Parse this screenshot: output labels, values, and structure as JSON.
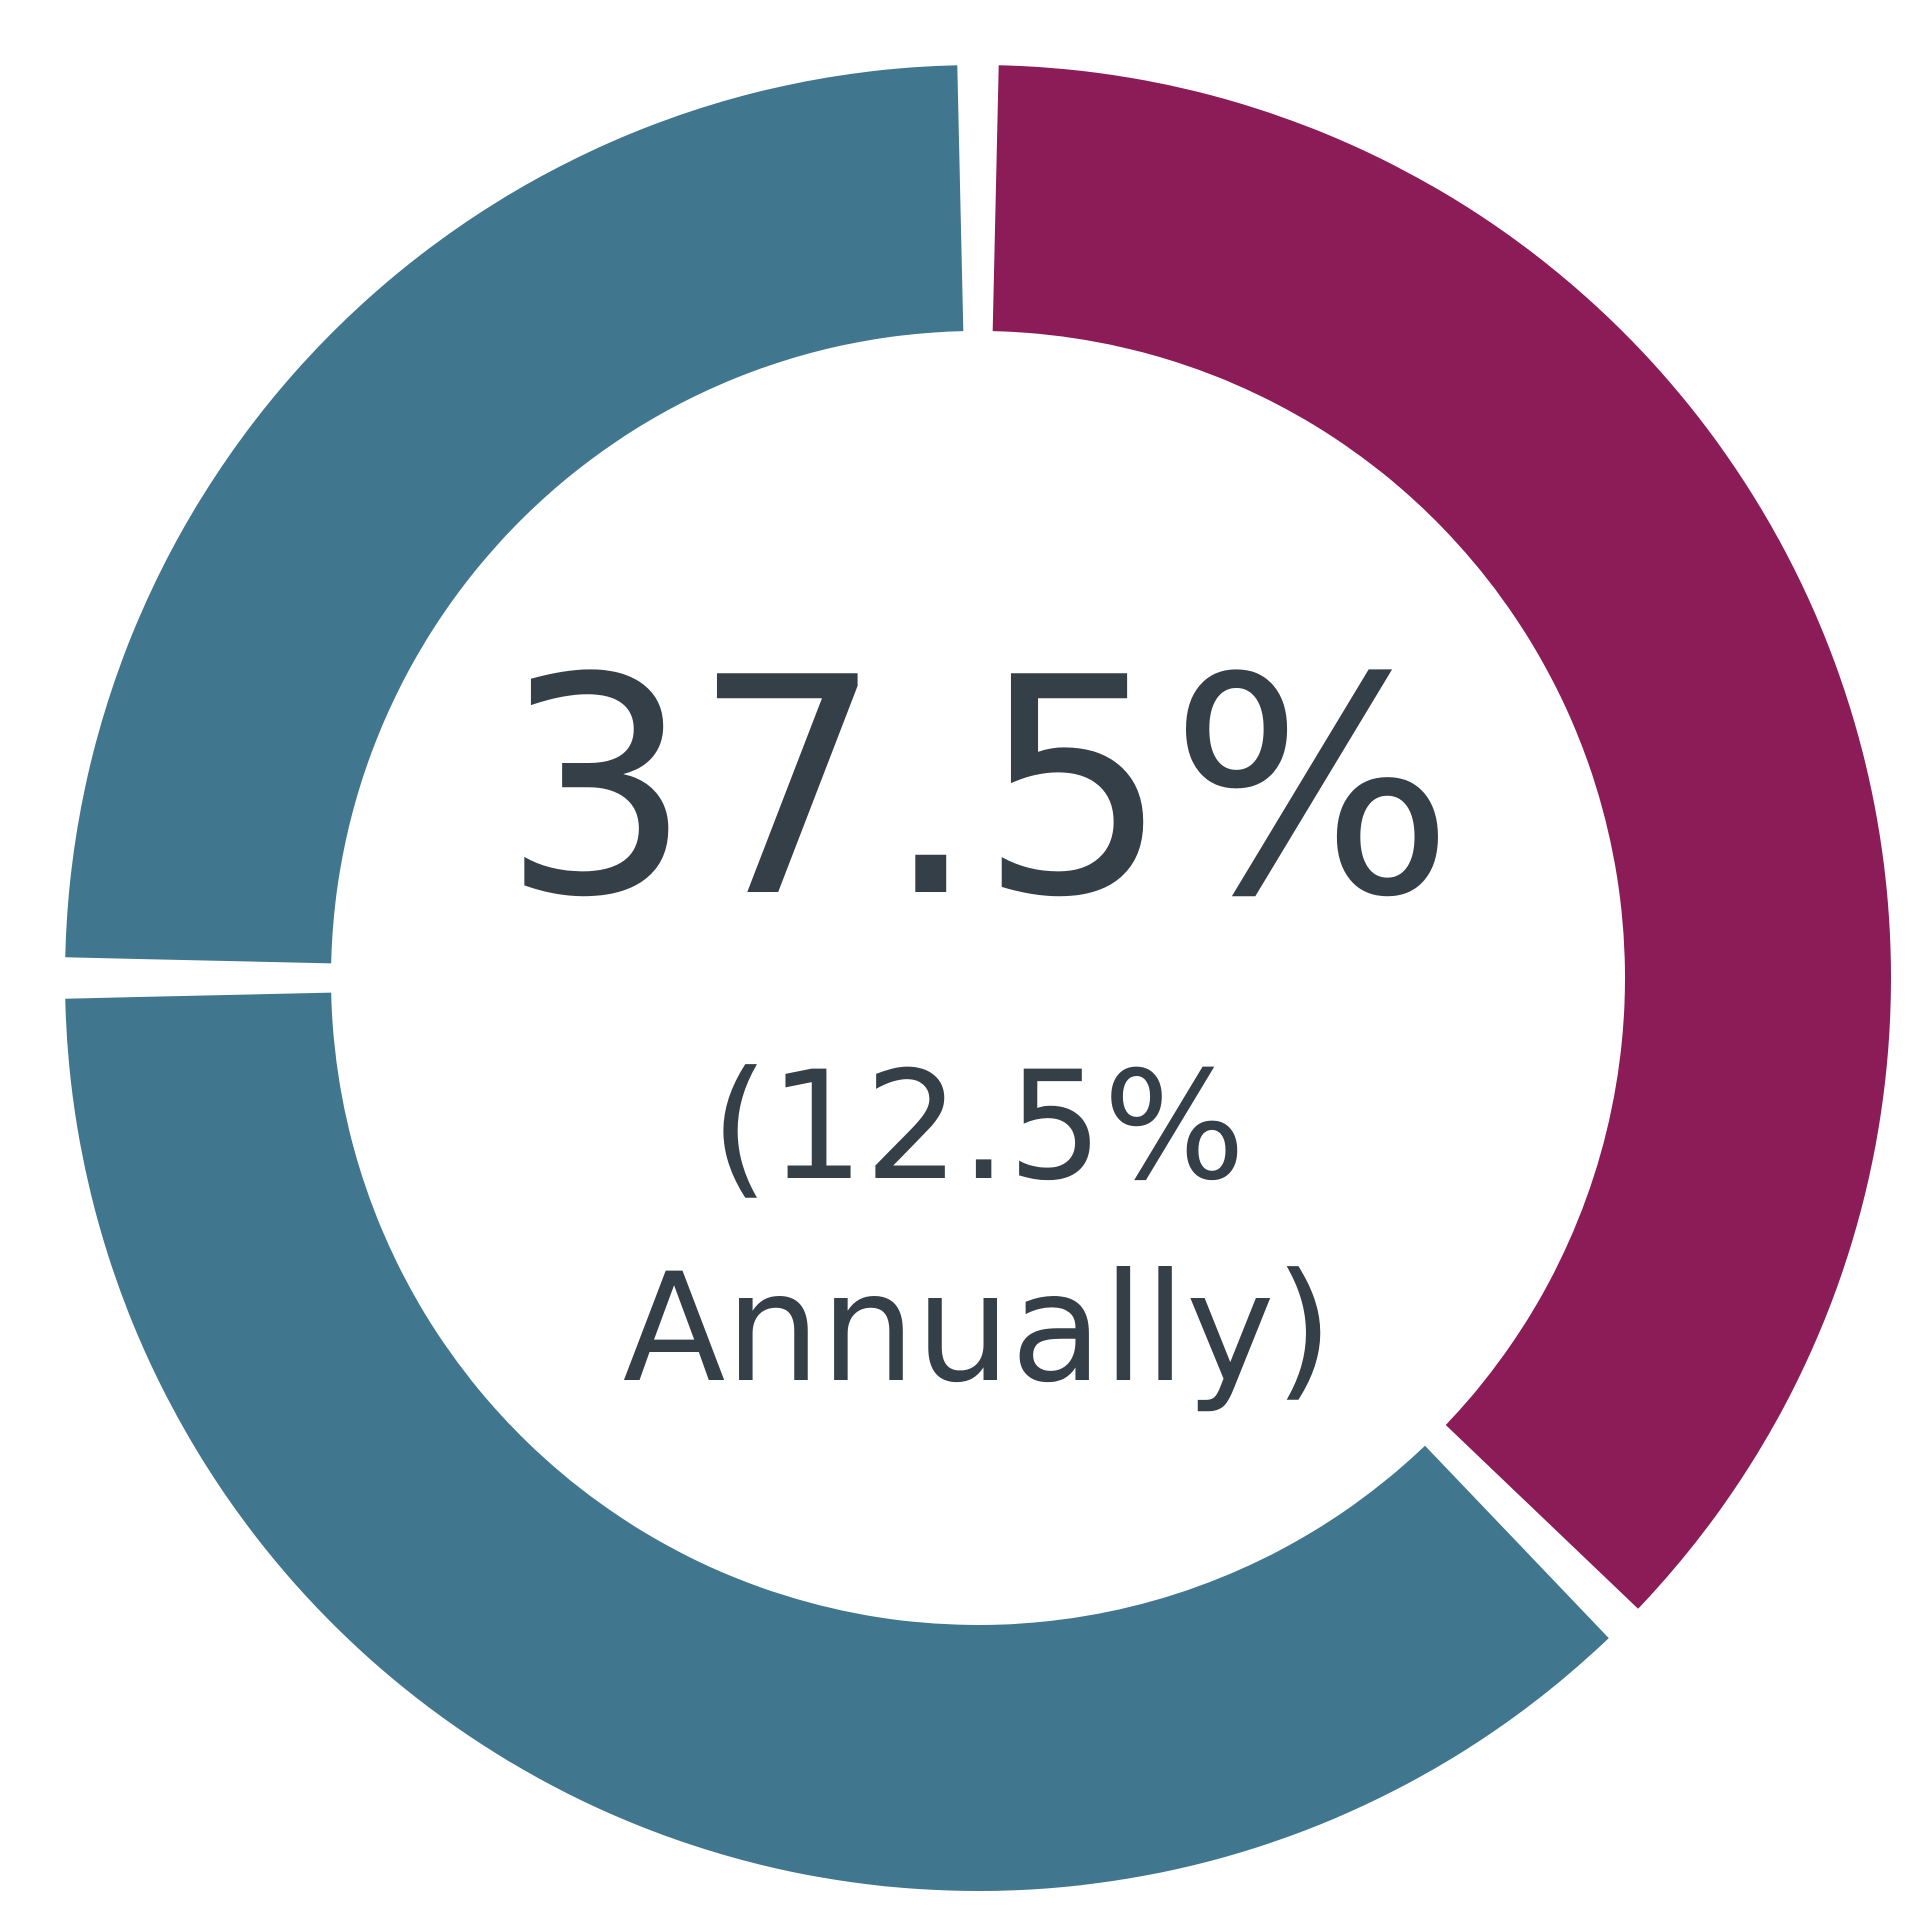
{
  "chart_data": {
    "type": "pie",
    "style": "donut",
    "segments": [
      {
        "value": 25.0,
        "color": "#41768F"
      },
      {
        "value": 37.5,
        "color": "#41768F"
      },
      {
        "value": 37.5,
        "color": "#8C1C57"
      }
    ],
    "center_label": "37.5%",
    "center_sublabel_line1": "(12.5%",
    "center_sublabel_line2": "Annually)",
    "text_color": "#343F48",
    "title": "",
    "legend": []
  }
}
